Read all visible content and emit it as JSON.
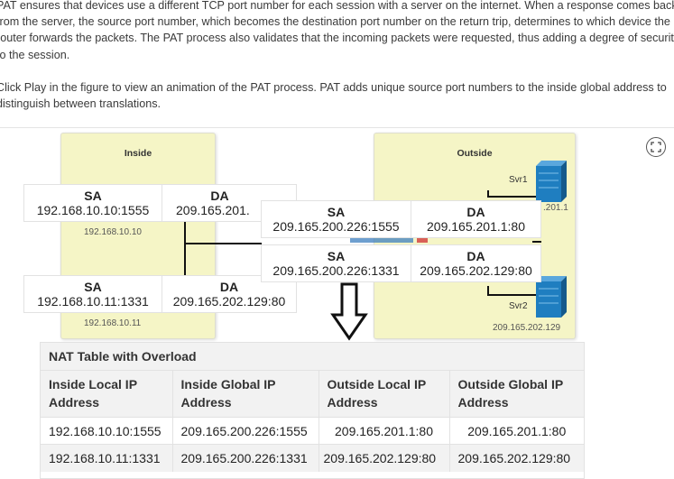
{
  "paragraphs": {
    "p1": "PAT ensures that devices use a different TCP port number for each session with a server on the internet. When a response comes back from the server, the source port number, which becomes the destination port number on the return trip, determines to which device the router forwards the packets. The PAT process also validates that the incoming packets were requested, thus adding a degree of security to the session.",
    "p2": "Click Play in the figure to view an animation of the PAT process. PAT adds unique source port numbers to the inside global address to distinguish between translations."
  },
  "figure": {
    "inside_title": "Inside",
    "outside_title": "Outside",
    "host1_ip": "192.168.10.10",
    "host2_ip": "192.168.10.11",
    "svr1_label": "Svr1",
    "svr1_ip": ".201.1",
    "svr2_label": "Svr2",
    "svr2_ip": "209.165.202.129",
    "expand_icon": "expand-icon",
    "packets": [
      {
        "sa_label": "SA",
        "sa": "192.168.10.10:1555",
        "da_label": "DA",
        "da": "209.165.201."
      },
      {
        "sa_label": "SA",
        "sa": "192.168.10.11:1331",
        "da_label": "DA",
        "da": "209.165.202.129:80"
      },
      {
        "sa_label": "SA",
        "sa": "209.165.200.226:1555",
        "da_label": "DA",
        "da": "209.165.201.1:80"
      },
      {
        "sa_label": "SA",
        "sa": "209.165.200.226:1331",
        "da_label": "DA",
        "da": "209.165.202.129:80"
      }
    ]
  },
  "nat_table": {
    "caption": "NAT Table with Overload",
    "headers": [
      "Inside Local IP Address",
      "Inside Global IP Address",
      "Outside Local IP Address",
      "Outside Global IP Address"
    ],
    "rows": [
      [
        "192.168.10.10:1555",
        "209.165.200.226:1555",
        "209.165.201.1:80",
        "209.165.201.1:80"
      ],
      [
        "192.168.10.11:1331",
        "209.165.200.226:1331",
        "209.165.202.129:80",
        "209.165.202.129:80"
      ]
    ]
  },
  "colors": {
    "zone_fill": "#f5f5c6",
    "server_blue": "#1f7ec0",
    "line": "#111111"
  }
}
